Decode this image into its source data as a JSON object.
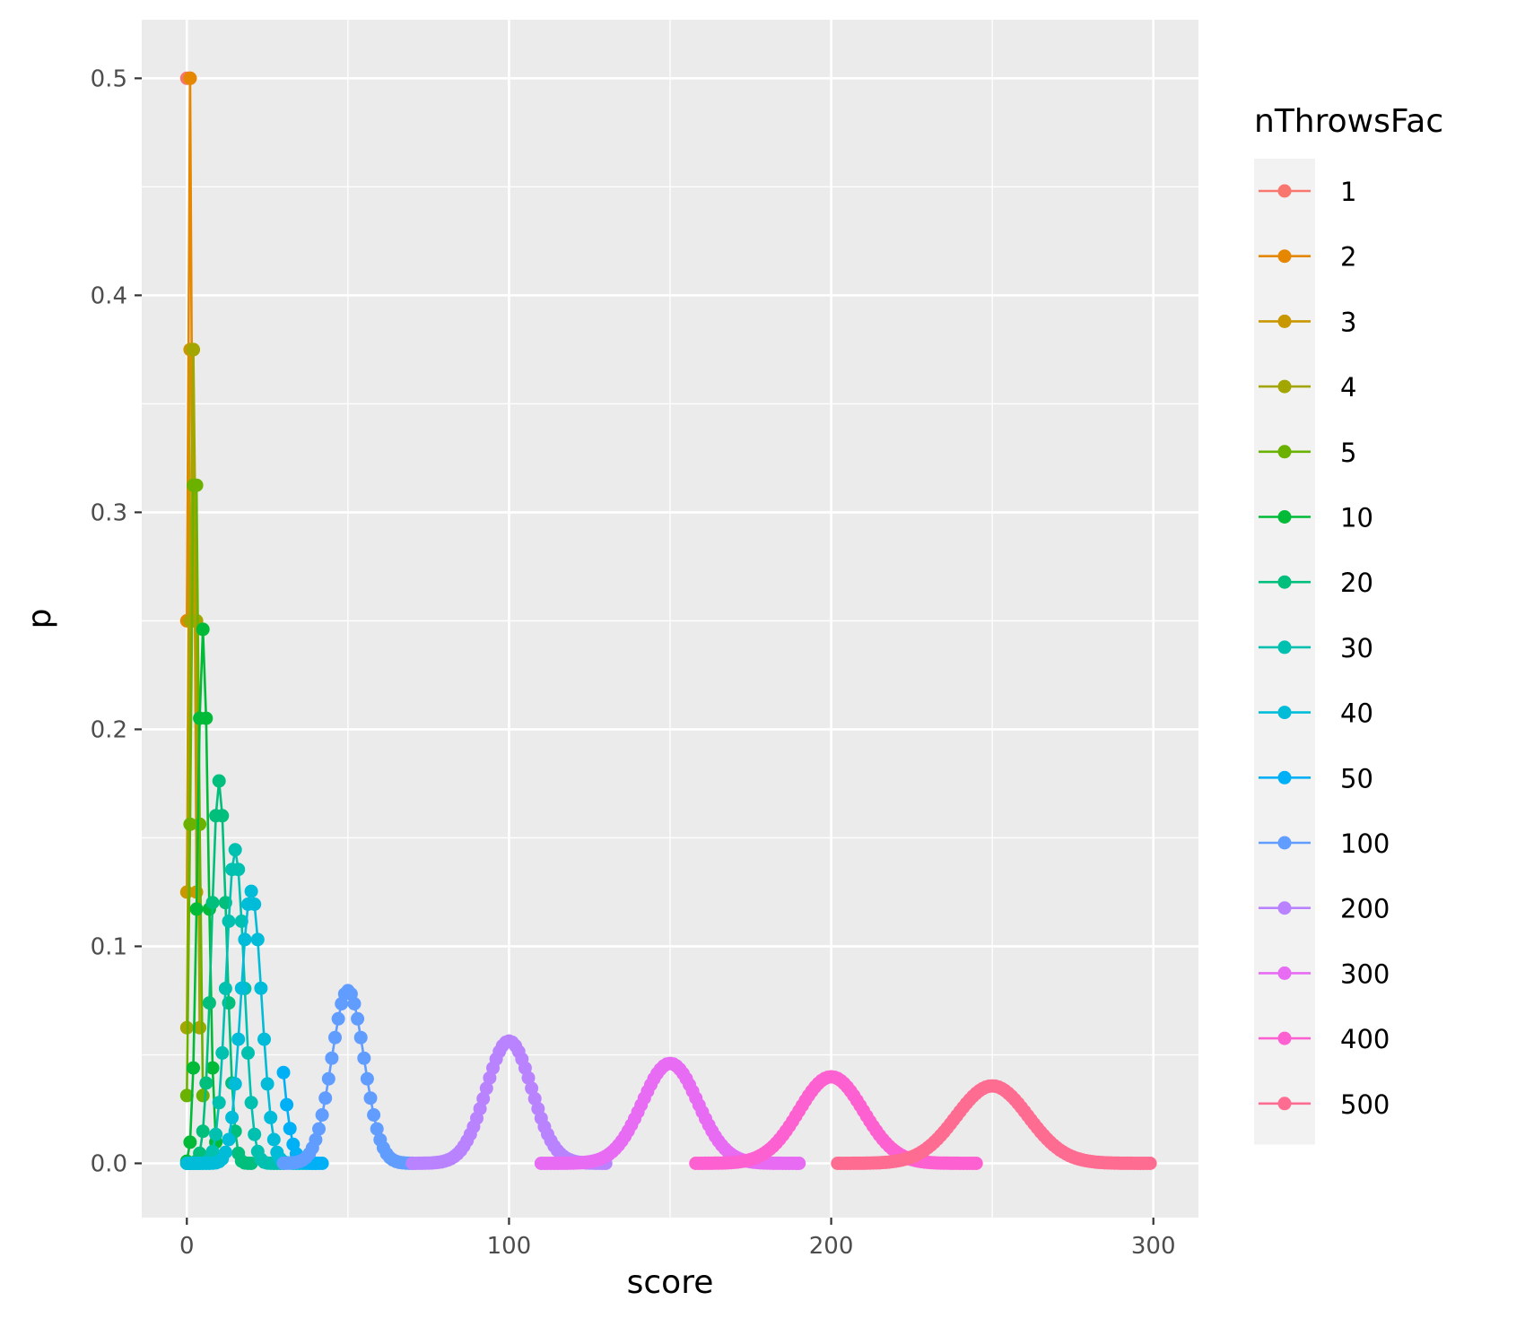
{
  "chart_data": {
    "type": "line",
    "xlabel": "score",
    "ylabel": "p",
    "xlim": [
      -14,
      314
    ],
    "ylim": [
      -0.025,
      0.527
    ],
    "x_ticks": [
      0,
      100,
      200,
      300
    ],
    "x_tick_labels": [
      "0",
      "100",
      "200",
      "300"
    ],
    "y_ticks": [
      0,
      0.1,
      0.2,
      0.3,
      0.4,
      0.5
    ],
    "y_tick_labels": [
      "0.0",
      "0.1",
      "0.2",
      "0.3",
      "0.4",
      "0.5"
    ],
    "grid": true,
    "markers": true,
    "legend": {
      "title": "nThrowsFac",
      "position": "right"
    },
    "series": [
      {
        "name": "1",
        "color": "#F8766D",
        "distribution": {
          "n": 1,
          "p": 0.5,
          "xmin": 0,
          "xmax": 1
        }
      },
      {
        "name": "2",
        "color": "#E58700",
        "distribution": {
          "n": 2,
          "p": 0.5,
          "xmin": 0,
          "xmax": 2
        }
      },
      {
        "name": "3",
        "color": "#C99800",
        "distribution": {
          "n": 3,
          "p": 0.5,
          "xmin": 0,
          "xmax": 3
        }
      },
      {
        "name": "4",
        "color": "#A3A500",
        "distribution": {
          "n": 4,
          "p": 0.5,
          "xmin": 0,
          "xmax": 4
        }
      },
      {
        "name": "5",
        "color": "#6BB100",
        "distribution": {
          "n": 5,
          "p": 0.5,
          "xmin": 0,
          "xmax": 5
        }
      },
      {
        "name": "10",
        "color": "#00BA38",
        "distribution": {
          "n": 10,
          "p": 0.5,
          "xmin": 0,
          "xmax": 10
        }
      },
      {
        "name": "20",
        "color": "#00BF7D",
        "distribution": {
          "n": 20,
          "p": 0.5,
          "xmin": 0,
          "xmax": 20
        }
      },
      {
        "name": "30",
        "color": "#00C0AF",
        "distribution": {
          "n": 30,
          "p": 0.5,
          "xmin": 0,
          "xmax": 30
        }
      },
      {
        "name": "40",
        "color": "#00BCD8",
        "distribution": {
          "n": 40,
          "p": 0.5,
          "xmin": 0,
          "xmax": 40
        }
      },
      {
        "name": "50",
        "color": "#00B0F6",
        "distribution": {
          "n": 50,
          "p": 0.5,
          "xmin": 30,
          "xmax": 42
        }
      },
      {
        "name": "100",
        "color": "#619CFF",
        "distribution": {
          "n": 100,
          "p": 0.5,
          "xmin": 30,
          "xmax": 70
        }
      },
      {
        "name": "200",
        "color": "#B983FF",
        "distribution": {
          "n": 200,
          "p": 0.5,
          "xmin": 70,
          "xmax": 130
        }
      },
      {
        "name": "300",
        "color": "#E76BF3",
        "distribution": {
          "n": 300,
          "p": 0.5,
          "xmin": 110,
          "xmax": 190
        }
      },
      {
        "name": "400",
        "color": "#FD61D1",
        "distribution": {
          "n": 400,
          "p": 0.5,
          "xmin": 158,
          "xmax": 245
        }
      },
      {
        "name": "500",
        "color": "#FF6C91",
        "distribution": {
          "n": 500,
          "p": 0.5,
          "xmin": 202,
          "xmax": 299
        }
      }
    ]
  }
}
